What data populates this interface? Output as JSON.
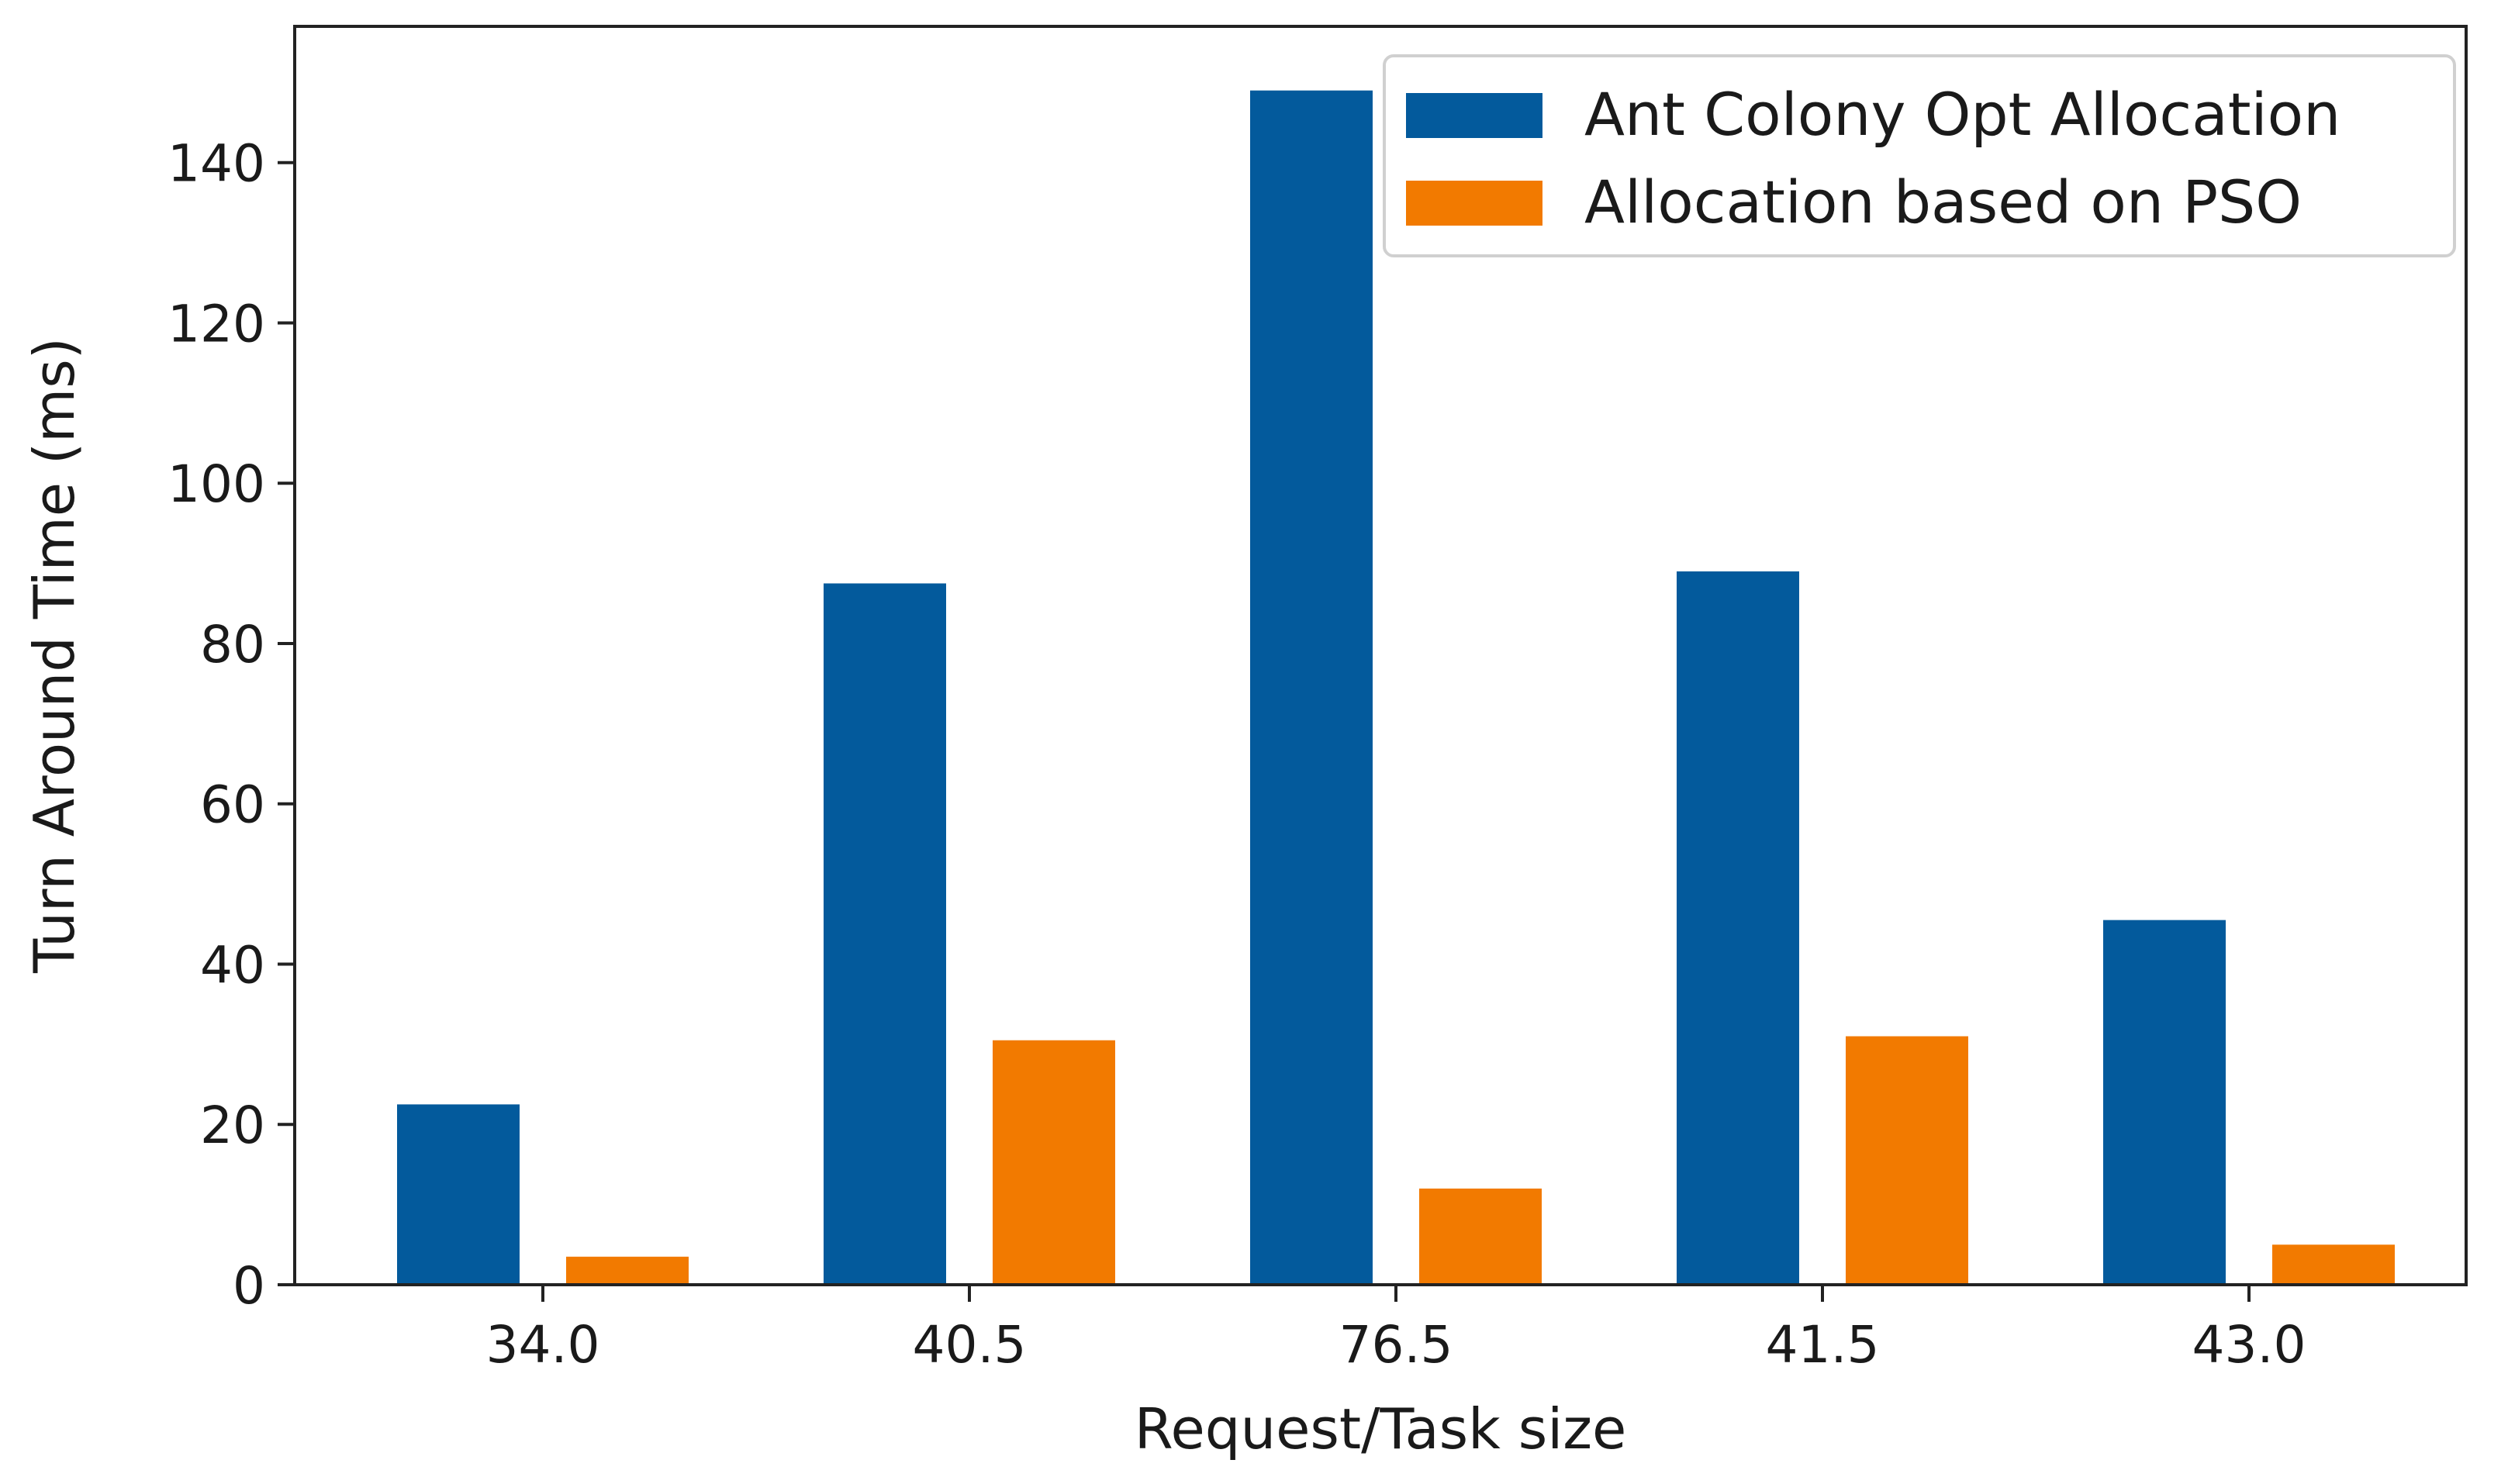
{
  "chart_data": {
    "type": "bar",
    "title": "",
    "xlabel": "Request/Task size",
    "ylabel": "Turn Around Time (ms)",
    "categories": [
      "34.0",
      "40.5",
      "76.5",
      "41.5",
      "43.0"
    ],
    "series": [
      {
        "name": "Ant Colony Opt Allocation",
        "color": "#035a9c",
        "values": [
          22.5,
          87.5,
          149,
          89,
          45.5
        ]
      },
      {
        "name": "Allocation based on PSO",
        "color": "#f27a00",
        "values": [
          3.5,
          30.5,
          12,
          31,
          5
        ]
      }
    ],
    "ylim": [
      0,
      157
    ],
    "yticks": [
      0,
      20,
      40,
      60,
      80,
      100,
      120,
      140
    ],
    "grid": false,
    "legend_position": "top-right"
  }
}
